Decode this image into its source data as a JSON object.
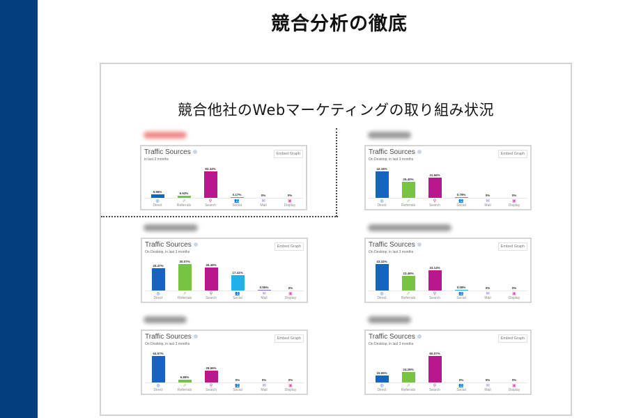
{
  "slide": {
    "title": "競合分析の徹底",
    "frame_title": "競合他社のWebマーケティングの取り組み状況",
    "sidebar_color": "#043f80"
  },
  "common": {
    "card_title": "Traffic Sources",
    "embed_label": "Embed Graph",
    "categories": [
      "Direct",
      "Referrals",
      "Search",
      "Social",
      "Mail",
      "Display"
    ],
    "icons": [
      "target-icon",
      "link-icon",
      "search-icon",
      "people-icon",
      "mail-icon",
      "display-icon"
    ],
    "icon_glyphs": [
      "◎",
      "⇗",
      "⚲",
      "👥",
      "✉",
      "▣"
    ],
    "colors": [
      "#1565c0",
      "#76c442",
      "#b8188c",
      "#1fb1e8",
      "#8d6bd8",
      "#e84fb3"
    ]
  },
  "panels": [
    {
      "id": "tl",
      "subtitle": "in last 3 months",
      "label_color": "#f08a8a",
      "values": [
        "9.96%",
        "6.53%",
        "83.34%",
        "0.17%",
        "0%",
        "0%"
      ]
    },
    {
      "id": "tr",
      "subtitle": "On Desktop, in last 3 months",
      "label_color": "#9a9a9a",
      "values": [
        "42.16%",
        "25.40%",
        "31.66%",
        "0.79%",
        "0%",
        "0%"
      ]
    },
    {
      "id": "ml",
      "subtitle": "On Desktop, in last 3 months",
      "label_color": "#9a9a9a",
      "values": [
        "25.47%",
        "30.07%",
        "26.49%",
        "17.41%",
        "0.55%",
        "0%"
      ]
    },
    {
      "id": "mr",
      "subtitle": "On Desktop, in last 3 months",
      "label_color": "#9a9a9a",
      "values": [
        "43.32%",
        "23.46%",
        "33.14%",
        "0.08%",
        "0%",
        "0%"
      ]
    },
    {
      "id": "bl",
      "subtitle": "On Desktop, in last 3 months",
      "label_color": "#9a9a9a",
      "values": [
        "64.57%",
        "6.86%",
        "28.56%",
        "0%",
        "0%",
        "0%"
      ]
    },
    {
      "id": "br",
      "subtitle": "On Desktop, in last 3 months",
      "label_color": "#9a9a9a",
      "values": [
        "15.65%",
        "24.28%",
        "60.07%",
        "0%",
        "0%",
        "0%"
      ]
    }
  ],
  "chart_data": [
    {
      "type": "bar",
      "title": "Traffic Sources",
      "subtitle": "in last 3 months",
      "categories": [
        "Direct",
        "Referrals",
        "Search",
        "Social",
        "Mail",
        "Display"
      ],
      "values": [
        9.96,
        6.53,
        83.34,
        0.17,
        0,
        0
      ],
      "ylabel": "%"
    },
    {
      "type": "bar",
      "title": "Traffic Sources",
      "subtitle": "On Desktop, in last 3 months",
      "categories": [
        "Direct",
        "Referrals",
        "Search",
        "Social",
        "Mail",
        "Display"
      ],
      "values": [
        42.16,
        25.4,
        31.66,
        0.79,
        0,
        0
      ],
      "ylabel": "%"
    },
    {
      "type": "bar",
      "title": "Traffic Sources",
      "subtitle": "On Desktop, in last 3 months",
      "categories": [
        "Direct",
        "Referrals",
        "Search",
        "Social",
        "Mail",
        "Display"
      ],
      "values": [
        25.47,
        30.07,
        26.49,
        17.41,
        0.55,
        0
      ],
      "ylabel": "%"
    },
    {
      "type": "bar",
      "title": "Traffic Sources",
      "subtitle": "On Desktop, in last 3 months",
      "categories": [
        "Direct",
        "Referrals",
        "Search",
        "Social",
        "Mail",
        "Display"
      ],
      "values": [
        43.32,
        23.46,
        33.14,
        0.08,
        0,
        0
      ],
      "ylabel": "%"
    },
    {
      "type": "bar",
      "title": "Traffic Sources",
      "subtitle": "On Desktop, in last 3 months",
      "categories": [
        "Direct",
        "Referrals",
        "Search",
        "Social",
        "Mail",
        "Display"
      ],
      "values": [
        64.57,
        6.86,
        28.56,
        0,
        0,
        0
      ],
      "ylabel": "%"
    },
    {
      "type": "bar",
      "title": "Traffic Sources",
      "subtitle": "On Desktop, in last 3 months",
      "categories": [
        "Direct",
        "Referrals",
        "Search",
        "Social",
        "Mail",
        "Display"
      ],
      "values": [
        15.65,
        24.28,
        60.07,
        0,
        0,
        0
      ],
      "ylabel": "%"
    }
  ]
}
